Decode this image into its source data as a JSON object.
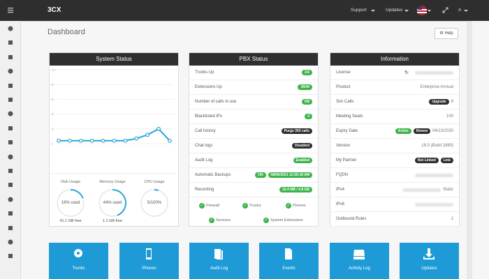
{
  "topbar": {
    "logo": "3CX",
    "menu": [
      "Support",
      "Updates",
      "A"
    ]
  },
  "header": {
    "title": "Dashboard",
    "help": "Help"
  },
  "system_status": {
    "title": "System Status",
    "chart": {
      "type": "line",
      "ylim": [
        0,
        100
      ],
      "yticks": [
        0,
        20,
        40,
        60,
        80,
        100
      ],
      "color": "#2aa3d8",
      "values": [
        4,
        4,
        4,
        4,
        4,
        4,
        4,
        7,
        12,
        20,
        4
      ]
    },
    "gauges": [
      {
        "label": "Disk Usage",
        "value": 19,
        "value_label": "19% used",
        "free": "41.1 GB free"
      },
      {
        "label": "Memory Usage",
        "value": 44,
        "value_label": "44% used",
        "free": "1.1 GB free"
      },
      {
        "label": "CPU Usage",
        "value": 5,
        "value_label": "5/100%"
      }
    ]
  },
  "pbx_status": {
    "title": "PBX Status",
    "rows": [
      {
        "label": "Trunks Up",
        "badges": [
          {
            "text": "2/2",
            "style": "green"
          }
        ]
      },
      {
        "label": "Extensions Up",
        "badges": [
          {
            "text": "36/40",
            "style": "green"
          }
        ]
      },
      {
        "label": "Number of calls in use",
        "badges": [
          {
            "text": "0/8",
            "style": "green"
          }
        ]
      },
      {
        "label": "Blacklisted IPs",
        "badges": [
          {
            "text": "0",
            "style": "green"
          }
        ]
      },
      {
        "label": "Call history",
        "badges": [
          {
            "text": "Purge 350 calls",
            "style": "dark"
          }
        ]
      },
      {
        "label": "Chat logs",
        "badges": [
          {
            "text": "Disabled",
            "style": "dark"
          }
        ]
      },
      {
        "label": "Audit Log",
        "badges": [
          {
            "text": "Enabled",
            "style": "green"
          }
        ]
      },
      {
        "label": "Automatic Backups",
        "badges": [
          {
            "text": "ON",
            "style": "green"
          },
          {
            "text": "08/06/2021 12:00:18 AM",
            "style": "green"
          }
        ]
      },
      {
        "label": "Recording",
        "badges": [
          {
            "text": "16.4 MB / 4.8 GB",
            "style": "green"
          }
        ]
      }
    ],
    "checks": [
      "Firewall",
      "Trunks",
      "Phones",
      "Services",
      "System Extensions"
    ]
  },
  "information": {
    "title": "Information",
    "rows": [
      {
        "label": "License",
        "blurred": true,
        "refresh": true
      },
      {
        "label": "Product",
        "value": "Enterprise Annual"
      },
      {
        "label": "Sim Calls",
        "badges": [
          {
            "text": "Upgrade",
            "style": "dark"
          }
        ],
        "value": "8"
      },
      {
        "label": "Meeting Seats",
        "value": "100"
      },
      {
        "label": "Expiry Date",
        "badges": [
          {
            "text": "Active",
            "style": "green"
          },
          {
            "text": "Renew",
            "style": "dark"
          }
        ],
        "value": "04/13/2030"
      },
      {
        "label": "Version",
        "value": "18.0 (Build 1880)"
      },
      {
        "label": "My Partner",
        "badges": [
          {
            "text": "Not Linked",
            "style": "dark"
          },
          {
            "text": "Link",
            "style": "dark"
          }
        ]
      },
      {
        "label": "FQDN",
        "blurred": true
      },
      {
        "label": "IPv4",
        "blurred": true,
        "value": "Static"
      },
      {
        "label": "IPv6",
        "blurred": true
      },
      {
        "label": "Outbound Rules",
        "value": "1"
      }
    ]
  },
  "tiles": [
    "Trunks",
    "Phones",
    "Audit Log",
    "Events",
    "Activity Log",
    "Updates"
  ]
}
